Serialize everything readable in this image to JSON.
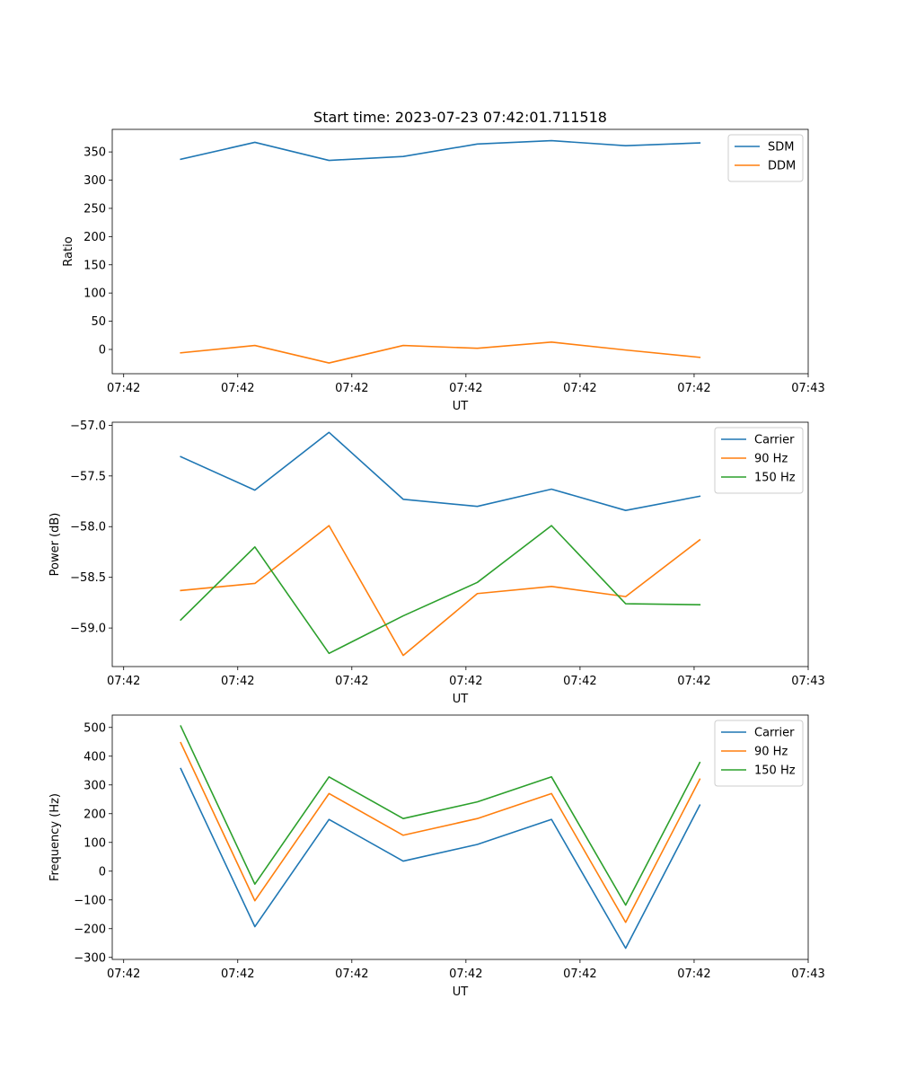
{
  "figure": {
    "title": "Start time: 2023-07-23 07:42:01.711518"
  },
  "chart_data": [
    {
      "type": "line",
      "title": "Start time: 2023-07-23 07:42:01.711518",
      "xlabel": "UT",
      "ylabel": "Ratio",
      "x_tick_labels": [
        "07:42",
        "07:42",
        "07:42",
        "07:42",
        "07:42",
        "07:42",
        "07:43"
      ],
      "x": [
        0.5,
        1.15,
        1.8,
        2.45,
        3.1,
        3.75,
        4.4,
        5.05
      ],
      "xlim": [
        -0.1,
        6.0
      ],
      "ylim": [
        -43,
        390
      ],
      "yticks": [
        0,
        50,
        100,
        150,
        200,
        250,
        300,
        350
      ],
      "legend_position": "upper right",
      "series": [
        {
          "name": "SDM",
          "color": "#1f77b4",
          "values": [
            337,
            367,
            335,
            342,
            364,
            370,
            361,
            366
          ]
        },
        {
          "name": "DDM",
          "color": "#ff7f0e",
          "values": [
            -6,
            7,
            -24,
            7,
            2,
            13,
            -1,
            -14
          ]
        }
      ]
    },
    {
      "type": "line",
      "title": "",
      "xlabel": "UT",
      "ylabel": "Power (dB)",
      "x_tick_labels": [
        "07:42",
        "07:42",
        "07:42",
        "07:42",
        "07:42",
        "07:42",
        "07:43"
      ],
      "x": [
        0.5,
        1.15,
        1.8,
        2.45,
        3.1,
        3.75,
        4.4,
        5.05
      ],
      "xlim": [
        -0.1,
        6.0
      ],
      "ylim": [
        -59.38,
        -56.97
      ],
      "yticks": [
        -59.0,
        -58.5,
        -58.0,
        -57.5,
        -57.0
      ],
      "ytick_labels": [
        "−59.0",
        "−58.5",
        "−58.0",
        "−57.5",
        "−57.0"
      ],
      "legend_position": "upper right",
      "series": [
        {
          "name": "Carrier",
          "color": "#1f77b4",
          "values": [
            -57.31,
            -57.64,
            -57.07,
            -57.73,
            -57.8,
            -57.63,
            -57.84,
            -57.7
          ]
        },
        {
          "name": "90 Hz",
          "color": "#ff7f0e",
          "values": [
            -58.63,
            -58.56,
            -57.99,
            -59.27,
            -58.66,
            -58.59,
            -58.69,
            -58.13
          ]
        },
        {
          "name": "150 Hz",
          "color": "#2ca02c",
          "values": [
            -58.92,
            -58.2,
            -59.25,
            -58.88,
            -58.55,
            -57.99,
            -58.76,
            -58.77
          ]
        }
      ]
    },
    {
      "type": "line",
      "title": "",
      "xlabel": "UT",
      "ylabel": "Frequency (Hz)",
      "x_tick_labels": [
        "07:42",
        "07:42",
        "07:42",
        "07:42",
        "07:42",
        "07:42",
        "07:43"
      ],
      "x": [
        0.5,
        1.15,
        1.8,
        2.45,
        3.1,
        3.75,
        4.4,
        5.05
      ],
      "xlim": [
        -0.1,
        6.0
      ],
      "ylim": [
        -307,
        543
      ],
      "yticks": [
        -300,
        -200,
        -100,
        0,
        100,
        200,
        300,
        400,
        500
      ],
      "ytick_labels": [
        "−300",
        "−200",
        "−100",
        "0",
        "100",
        "200",
        "300",
        "400",
        "500"
      ],
      "legend_position": "upper right",
      "series": [
        {
          "name": "Carrier",
          "color": "#1f77b4",
          "values": [
            357,
            -193,
            180,
            35,
            93,
            180,
            -268,
            230
          ]
        },
        {
          "name": "90 Hz",
          "color": "#ff7f0e",
          "values": [
            447,
            -103,
            270,
            125,
            183,
            270,
            -178,
            320
          ]
        },
        {
          "name": "150 Hz",
          "color": "#2ca02c",
          "values": [
            505,
            -45,
            328,
            183,
            241,
            328,
            -118,
            378
          ]
        }
      ]
    }
  ]
}
